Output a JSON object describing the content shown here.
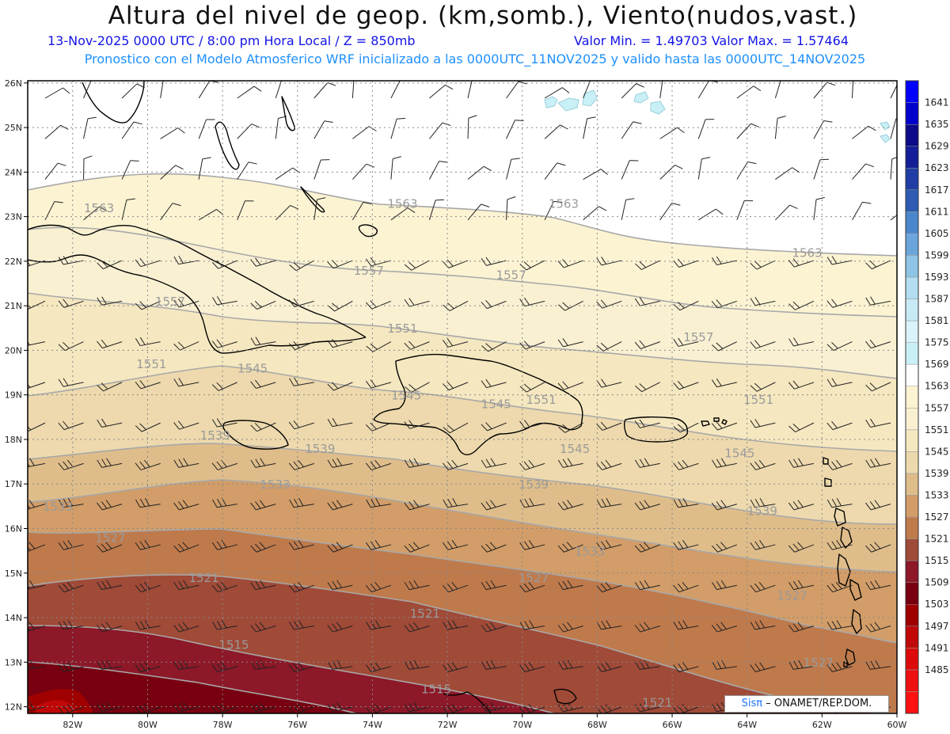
{
  "header": {
    "title": "Altura del nivel de geop. (km,somb.), Viento(nudos,vast.)",
    "line1_left": "13-Nov-2025  0000 UTC / 8:00 pm Hora Local / Z = 850mb",
    "line1_right": "Valor Min. = 1.49703  Valor Max. = 1.57464",
    "line2": "Pronostico con el Modelo Atmosferico WRF inicializado a las 0000UTC_11NOV2025 y valido hasta las  0000UTC_14NOV2025"
  },
  "credit": {
    "brand": "Sisπ",
    "text": "– ONAMET/REP.DOM."
  },
  "map": {
    "lat_labels": [
      "26N",
      "25N",
      "24N",
      "23N",
      "22N",
      "21N",
      "20N",
      "19N",
      "18N",
      "17N",
      "16N",
      "15N",
      "14N",
      "13N",
      "12N"
    ],
    "lon_labels": [
      "82W",
      "80W",
      "78W",
      "76W",
      "74W",
      "72W",
      "70W",
      "68W",
      "66W",
      "64W",
      "62W",
      "60W"
    ],
    "contour_labels": [
      {
        "text": "1563",
        "lon": -81.7,
        "lat": 23.1
      },
      {
        "text": "1563",
        "lon": -73.6,
        "lat": 23.2
      },
      {
        "text": "1563",
        "lon": -69.3,
        "lat": 23.2
      },
      {
        "text": "1563",
        "lon": -62.8,
        "lat": 22.1
      },
      {
        "text": "1557",
        "lon": -74.5,
        "lat": 21.7
      },
      {
        "text": "1557",
        "lon": -70.7,
        "lat": 21.6
      },
      {
        "text": "1557",
        "lon": -79.8,
        "lat": 21.0
      },
      {
        "text": "1557",
        "lon": -65.7,
        "lat": 20.2
      },
      {
        "text": "1551",
        "lon": -73.6,
        "lat": 20.4
      },
      {
        "text": "1551",
        "lon": -80.3,
        "lat": 19.6
      },
      {
        "text": "1551",
        "lon": -69.9,
        "lat": 18.8
      },
      {
        "text": "1551",
        "lon": -64.1,
        "lat": 18.8
      },
      {
        "text": "1545",
        "lon": -77.6,
        "lat": 19.5
      },
      {
        "text": "1545",
        "lon": -73.5,
        "lat": 18.9
      },
      {
        "text": "1545",
        "lon": -71.1,
        "lat": 18.7
      },
      {
        "text": "1545",
        "lon": -69.0,
        "lat": 17.7
      },
      {
        "text": "1545",
        "lon": -64.6,
        "lat": 17.6
      },
      {
        "text": "1539",
        "lon": -78.6,
        "lat": 18.0
      },
      {
        "text": "1539",
        "lon": -75.8,
        "lat": 17.7
      },
      {
        "text": "1539",
        "lon": -70.1,
        "lat": 16.9
      },
      {
        "text": "1539",
        "lon": -64.0,
        "lat": 16.3
      },
      {
        "text": "1533",
        "lon": -77.0,
        "lat": 16.9
      },
      {
        "text": "1533",
        "lon": -82.8,
        "lat": 16.4
      },
      {
        "text": "1533",
        "lon": -68.6,
        "lat": 15.4
      },
      {
        "text": "1527",
        "lon": -81.4,
        "lat": 15.7
      },
      {
        "text": "1527",
        "lon": -70.1,
        "lat": 14.8
      },
      {
        "text": "1527",
        "lon": -63.2,
        "lat": 14.4
      },
      {
        "text": "1527",
        "lon": -62.5,
        "lat": 12.9
      },
      {
        "text": "1521",
        "lon": -78.9,
        "lat": 14.8
      },
      {
        "text": "1521",
        "lon": -73.0,
        "lat": 14.0
      },
      {
        "text": "1521",
        "lon": -66.8,
        "lat": 12.0
      },
      {
        "text": "1515",
        "lon": -78.1,
        "lat": 13.3
      },
      {
        "text": "1515",
        "lon": -72.7,
        "lat": 12.3
      }
    ]
  },
  "colorbar": {
    "levels": [
      {
        "label": "",
        "color": "#ff1010"
      },
      {
        "label": "1485",
        "color": "#ee1010"
      },
      {
        "label": "1491",
        "color": "#dd0a0a"
      },
      {
        "label": "1497",
        "color": "#c00808"
      },
      {
        "label": "1503",
        "color": "#a00000"
      },
      {
        "label": "1509",
        "color": "#780010"
      },
      {
        "label": "1515",
        "color": "#8c1828"
      },
      {
        "label": "1521",
        "color": "#a04a38"
      },
      {
        "label": "1527",
        "color": "#bf7a4c"
      },
      {
        "label": "1533",
        "color": "#d29d68"
      },
      {
        "label": "1539",
        "color": "#dfbd8a"
      },
      {
        "label": "1545",
        "color": "#edd9ad"
      },
      {
        "label": "1551",
        "color": "#f5e7bf"
      },
      {
        "label": "1557",
        "color": "#f9f0d2"
      },
      {
        "label": "1563",
        "color": "#fbf3d2"
      },
      {
        "label": "1569",
        "color": "#ffffff"
      },
      {
        "label": "1575",
        "color": "#c8f0f6"
      },
      {
        "label": "1581",
        "color": "#daf2fa"
      },
      {
        "label": "1587",
        "color": "#c8eaf4"
      },
      {
        "label": "1593",
        "color": "#b2def0"
      },
      {
        "label": "1599",
        "color": "#8ec4e6"
      },
      {
        "label": "1605",
        "color": "#6aa6dc"
      },
      {
        "label": "1611",
        "color": "#4a86cc"
      },
      {
        "label": "1617",
        "color": "#2e5cb4"
      },
      {
        "label": "1623",
        "color": "#203ea6"
      },
      {
        "label": "1629",
        "color": "#141e98"
      },
      {
        "label": "1635",
        "color": "#0a0a8a"
      },
      {
        "label": "1641",
        "color": "#0000cc"
      },
      {
        "label": "",
        "color": "#0000ff"
      }
    ]
  },
  "colors": {
    "band_1563": "#fbf3d2",
    "band_1557": "#f9f0d2",
    "band_1551": "#f5e7bf",
    "band_1545": "#edd9ad",
    "band_1539": "#dfbd8a",
    "band_1533": "#d29d68",
    "band_1527": "#bf7a4c",
    "band_1521": "#a04a38",
    "band_1515": "#8c1828",
    "band_1509": "#780010",
    "band_1503": "#a00000",
    "band_1497": "#c00808",
    "band_1491": "#dd0a0a",
    "cyan_patch": "#c8f0f6",
    "title_blue": "#1414e6",
    "subtitle_blue": "#1e90ff"
  }
}
